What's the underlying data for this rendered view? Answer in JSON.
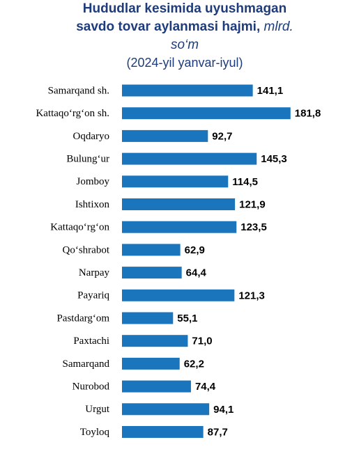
{
  "chart_data": {
    "type": "bar",
    "orientation": "horizontal",
    "title": "Hududlar kesimida uyushmagan savdo tovar aylanmasi hajmi,",
    "unit": "mlrd. so‘m",
    "subtitle": "(2024-yil yanvar-iyul)",
    "color": "#1b75bc",
    "categories": [
      "Samarqand sh.",
      "Kattaqo‘rg‘on sh.",
      "Oqdaryo",
      "Bulung‘ur",
      "Jomboy",
      "Ishtixon",
      "Kattaqo‘rg‘on",
      "Qo‘shrabot",
      "Narpay",
      "Payariq",
      "Pastdarg‘om",
      "Paxtachi",
      "Samarqand",
      "Nurobod",
      "Urgut",
      "Toyloq"
    ],
    "values": [
      141.1,
      181.8,
      92.7,
      145.3,
      114.5,
      121.9,
      123.5,
      62.9,
      64.4,
      121.3,
      55.1,
      71.0,
      62.2,
      74.4,
      94.1,
      87.7
    ],
    "value_labels": [
      "141,1",
      "181,8",
      "92,7",
      "145,3",
      "114,5",
      "121,9",
      "123,5",
      "62,9",
      "64,4",
      "121,3",
      "55,1",
      "71,0",
      "62,2",
      "74,4",
      "94,1",
      "87,7"
    ]
  }
}
